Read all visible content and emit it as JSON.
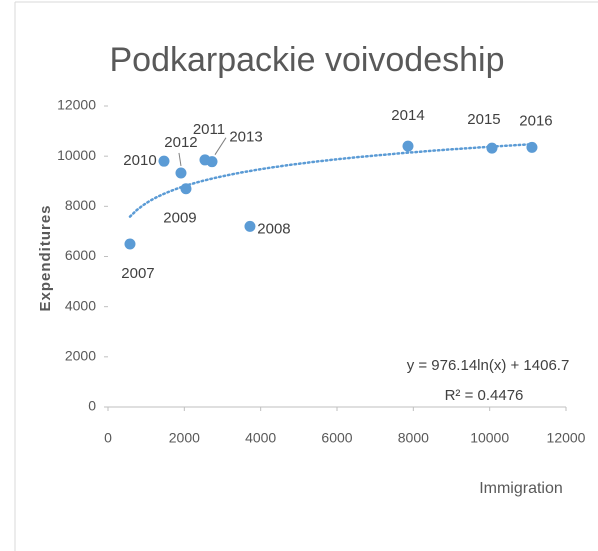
{
  "chart_data": {
    "type": "scatter",
    "title": "Podkarpackie voivodeship",
    "x_label": "Immigration",
    "y_label": "Expenditures",
    "x": [
      576,
      3720,
      2043,
      1467,
      2541,
      1912,
      2725,
      7860,
      10060,
      11108
    ],
    "values": [
      6500,
      7200,
      8700,
      9800,
      9850,
      9330,
      9780,
      10400,
      10320,
      10350
    ],
    "labels": [
      "2007",
      "2008",
      "2009",
      "2010",
      "2011",
      "2012",
      "2013",
      "2014",
      "2015",
      "2016"
    ],
    "color": "#5b9bd5",
    "xlim": [
      0,
      12000
    ],
    "xticks": [
      0,
      2000,
      4000,
      6000,
      8000,
      10000,
      12000
    ],
    "ylim": [
      0,
      12000
    ],
    "yticks": [
      0,
      2000,
      4000,
      6000,
      8000,
      10000,
      12000
    ],
    "trendline": {
      "type": "logarithmic",
      "equation": "y = 976.14ln(x) + 1406.7",
      "r_squared": "R² = 0.4476"
    }
  }
}
